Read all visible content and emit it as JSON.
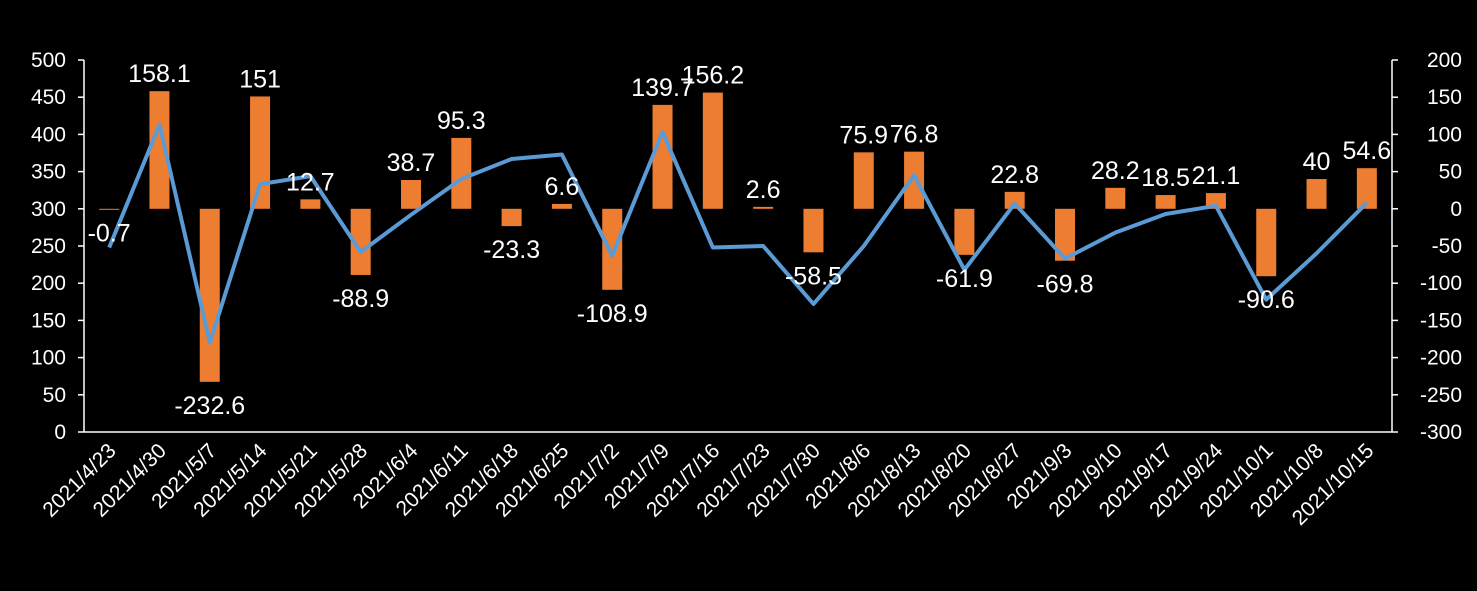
{
  "chart_data": {
    "type": "bar+line",
    "title": "",
    "categories": [
      "2021/4/23",
      "2021/4/30",
      "2021/5/7",
      "2021/5/14",
      "2021/5/21",
      "2021/5/28",
      "2021/6/4",
      "2021/6/11",
      "2021/6/18",
      "2021/6/25",
      "2021/7/2",
      "2021/7/9",
      "2021/7/16",
      "2021/7/23",
      "2021/7/30",
      "2021/8/6",
      "2021/8/13",
      "2021/8/20",
      "2021/8/27",
      "2021/9/3",
      "2021/9/10",
      "2021/9/17",
      "2021/9/24",
      "2021/10/1",
      "2021/10/8",
      "2021/10/15"
    ],
    "series": [
      {
        "type": "bar",
        "axis": "right",
        "color": "#ED7D31",
        "values": [
          -0.7,
          158.1,
          -232.6,
          151,
          12.7,
          -88.9,
          38.7,
          95.3,
          -23.3,
          6.6,
          -108.9,
          139.7,
          156.2,
          2.6,
          -58.5,
          75.9,
          76.8,
          -61.9,
          22.8,
          -69.8,
          28.2,
          18.5,
          21.1,
          -90.6,
          40,
          54.6
        ],
        "labels": [
          "-0.7",
          "158.1",
          "-232.6",
          "151",
          "12.7",
          "-88.9",
          "38.7",
          "95.3",
          "-23.3",
          "6.6",
          "-108.9",
          "139.7",
          "156.2",
          "2.6",
          "-58.5",
          "75.9",
          "76.8",
          "-61.9",
          "22.8",
          "-69.8",
          "28.2",
          "18.5",
          "21.1",
          "-90.6",
          "40",
          "54.6"
        ]
      },
      {
        "type": "line",
        "axis": "left",
        "color": "#5B9BD5",
        "values": [
          248,
          413,
          120,
          333,
          344,
          242,
          292,
          340,
          367,
          373,
          237,
          403,
          248,
          250,
          172,
          250,
          345,
          218,
          307,
          233,
          268,
          293,
          304,
          178,
          240,
          308
        ]
      }
    ],
    "y_left": {
      "range": [
        0,
        500
      ],
      "ticks": [
        "0",
        "50",
        "100",
        "150",
        "200",
        "250",
        "300",
        "350",
        "400",
        "450",
        "500"
      ]
    },
    "y_right": {
      "range": [
        -300,
        200
      ],
      "ticks": [
        "-300",
        "-250",
        "-200",
        "-150",
        "-100",
        "-50",
        "0",
        "50",
        "100",
        "150",
        "200"
      ]
    },
    "grid": false,
    "legend": "none"
  }
}
